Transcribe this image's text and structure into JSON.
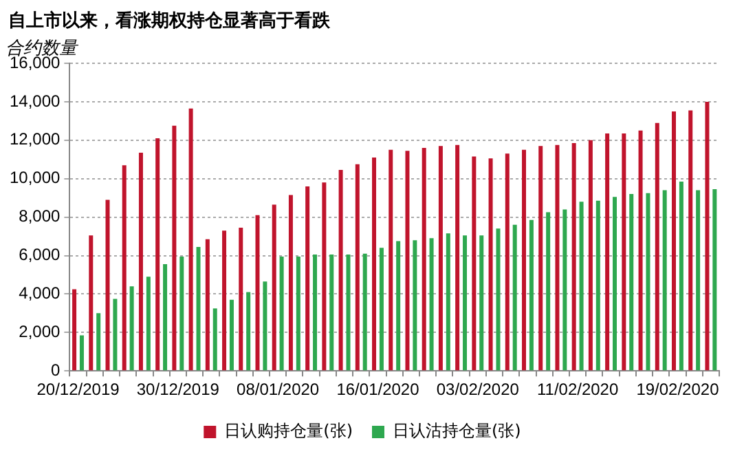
{
  "chart_data": {
    "type": "bar",
    "title": "自上市以来，看涨期权持仓显著高于看跌",
    "ylabel": "合约数量",
    "categories": [
      "20/12/2019",
      null,
      null,
      null,
      null,
      null,
      "30/12/2019",
      null,
      null,
      null,
      null,
      null,
      "08/01/2020",
      null,
      null,
      null,
      null,
      null,
      "16/01/2020",
      null,
      null,
      null,
      null,
      null,
      "03/02/2020",
      null,
      null,
      null,
      null,
      null,
      "11/02/2020",
      null,
      null,
      null,
      null,
      null,
      "19/02/2020",
      null,
      null
    ],
    "series": [
      {
        "name": "日认购持仓量(张)",
        "color": "#c0142c",
        "values": [
          4250,
          7050,
          8900,
          10700,
          11350,
          12100,
          12750,
          13650,
          6850,
          7300,
          7450,
          8100,
          8650,
          9150,
          9600,
          9800,
          10450,
          10750,
          11100,
          11500,
          11450,
          11600,
          11700,
          11750,
          11150,
          11050,
          11300,
          11500,
          11700,
          11750,
          11850,
          12000,
          12350,
          12350,
          12500,
          12900,
          13500,
          13550,
          14000
        ]
      },
      {
        "name": "日认沽持仓量(张)",
        "color": "#2ea84f",
        "values": [
          1850,
          3000,
          3750,
          4400,
          4900,
          5550,
          5950,
          6450,
          3250,
          3700,
          4100,
          4650,
          5950,
          5950,
          6050,
          6050,
          6050,
          6100,
          6400,
          6750,
          6800,
          6900,
          7150,
          7050,
          7050,
          7400,
          7600,
          7850,
          8250,
          8400,
          8800,
          8850,
          9050,
          9200,
          9250,
          9400,
          9850,
          9400,
          9450
        ]
      }
    ],
    "ylim": [
      0,
      16000
    ],
    "yticks": [
      {
        "value": 0,
        "label": "0"
      },
      {
        "value": 2000,
        "label": "2,000"
      },
      {
        "value": 4000,
        "label": "4,000"
      },
      {
        "value": 6000,
        "label": "6,000"
      },
      {
        "value": 8000,
        "label": "8,000"
      },
      {
        "value": 10000,
        "label": "10,000"
      },
      {
        "value": 12000,
        "label": "12,000"
      },
      {
        "value": 14000,
        "label": "14,000"
      },
      {
        "value": 16000,
        "label": "16,000"
      }
    ],
    "grid": "y",
    "legend": "bottom"
  }
}
